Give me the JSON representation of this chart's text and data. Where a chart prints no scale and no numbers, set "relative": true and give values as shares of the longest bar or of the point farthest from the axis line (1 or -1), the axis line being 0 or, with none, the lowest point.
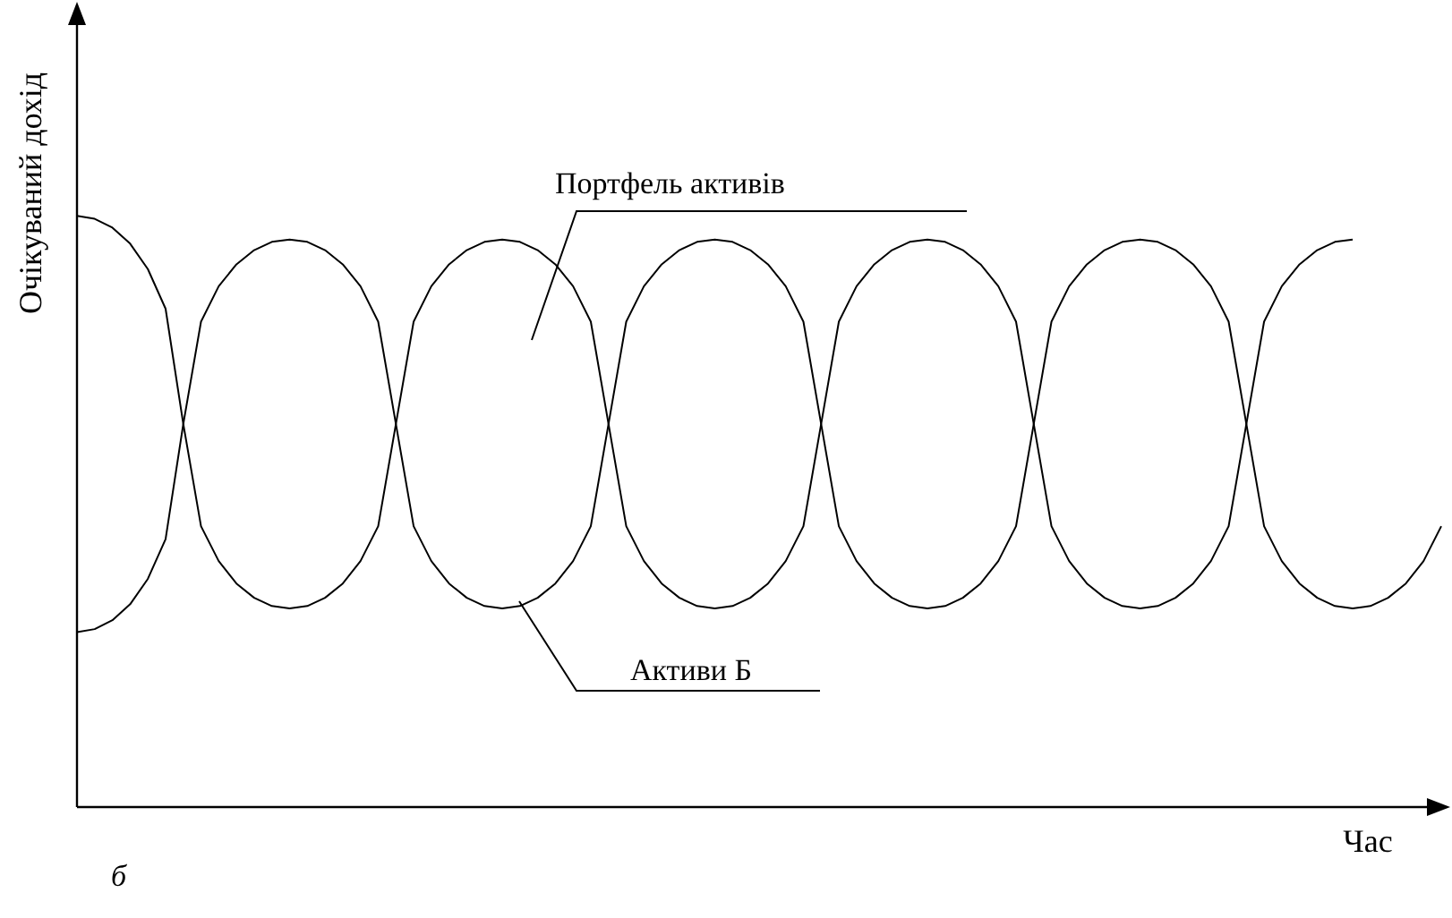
{
  "chart_data": {
    "type": "line",
    "relative": true,
    "xlabel": "Час",
    "ylabel": "Очікуваний дохід",
    "legend": false,
    "grid": false,
    "marker": "none",
    "line_style": "solid",
    "categories": [
      null,
      null,
      null,
      null,
      null,
      null,
      null,
      null,
      null,
      null,
      null,
      null,
      null,
      null,
      null,
      null,
      null,
      null,
      null,
      null,
      null,
      null,
      null,
      null,
      null,
      null,
      null,
      null,
      null,
      null,
      null,
      null,
      null,
      null,
      null,
      null,
      null,
      null,
      null,
      null,
      null,
      null,
      null,
      null,
      null,
      null,
      null,
      null,
      null,
      null,
      null,
      null,
      null,
      null,
      null,
      null,
      null,
      null,
      null,
      null,
      null,
      null,
      null,
      null,
      null,
      null,
      null,
      null,
      null,
      null,
      null,
      null,
      null,
      null,
      null,
      null,
      null,
      null
    ],
    "series": [
      {
        "name": "Портфель активів",
        "color": "#000000",
        "values": [
          1.0,
          0.995,
          0.98,
          0.953,
          0.91,
          0.843,
          0.648,
          0.475,
          0.416,
          0.378,
          0.354,
          0.34,
          0.336,
          0.34,
          0.354,
          0.378,
          0.416,
          0.475,
          0.648,
          0.821,
          0.881,
          0.918,
          0.942,
          0.956,
          0.96,
          0.956,
          0.942,
          0.918,
          0.881,
          0.821,
          0.648,
          0.475,
          0.416,
          0.378,
          0.354,
          0.34,
          0.336,
          0.34,
          0.354,
          0.378,
          0.416,
          0.475,
          0.648,
          0.821,
          0.881,
          0.918,
          0.942,
          0.956,
          0.96,
          0.956,
          0.942,
          0.918,
          0.881,
          0.821,
          0.648,
          0.475,
          0.416,
          0.378,
          0.354,
          0.34,
          0.336,
          0.34,
          0.354,
          0.378,
          0.416,
          0.475,
          0.648,
          0.821,
          0.881,
          0.918,
          0.942,
          0.956,
          0.96,
          null,
          null,
          null,
          null,
          null
        ]
      },
      {
        "name": "Активи Б",
        "color": "#000000",
        "values": [
          0.296,
          0.301,
          0.316,
          0.343,
          0.386,
          0.453,
          0.648,
          0.821,
          0.881,
          0.918,
          0.942,
          0.956,
          0.96,
          0.956,
          0.942,
          0.918,
          0.881,
          0.821,
          0.648,
          0.475,
          0.416,
          0.378,
          0.354,
          0.34,
          0.336,
          0.34,
          0.354,
          0.378,
          0.416,
          0.475,
          0.648,
          0.821,
          0.881,
          0.918,
          0.942,
          0.956,
          0.96,
          0.956,
          0.942,
          0.918,
          0.881,
          0.821,
          0.648,
          0.475,
          0.416,
          0.378,
          0.354,
          0.34,
          0.336,
          0.34,
          0.354,
          0.378,
          0.416,
          0.475,
          0.648,
          0.821,
          0.881,
          0.918,
          0.942,
          0.956,
          0.96,
          0.956,
          0.942,
          0.918,
          0.881,
          0.821,
          0.648,
          0.475,
          0.416,
          0.378,
          0.354,
          0.34,
          0.336,
          0.34,
          0.354,
          0.378,
          0.416,
          0.475
        ]
      }
    ],
    "annotations": [
      "б"
    ]
  }
}
